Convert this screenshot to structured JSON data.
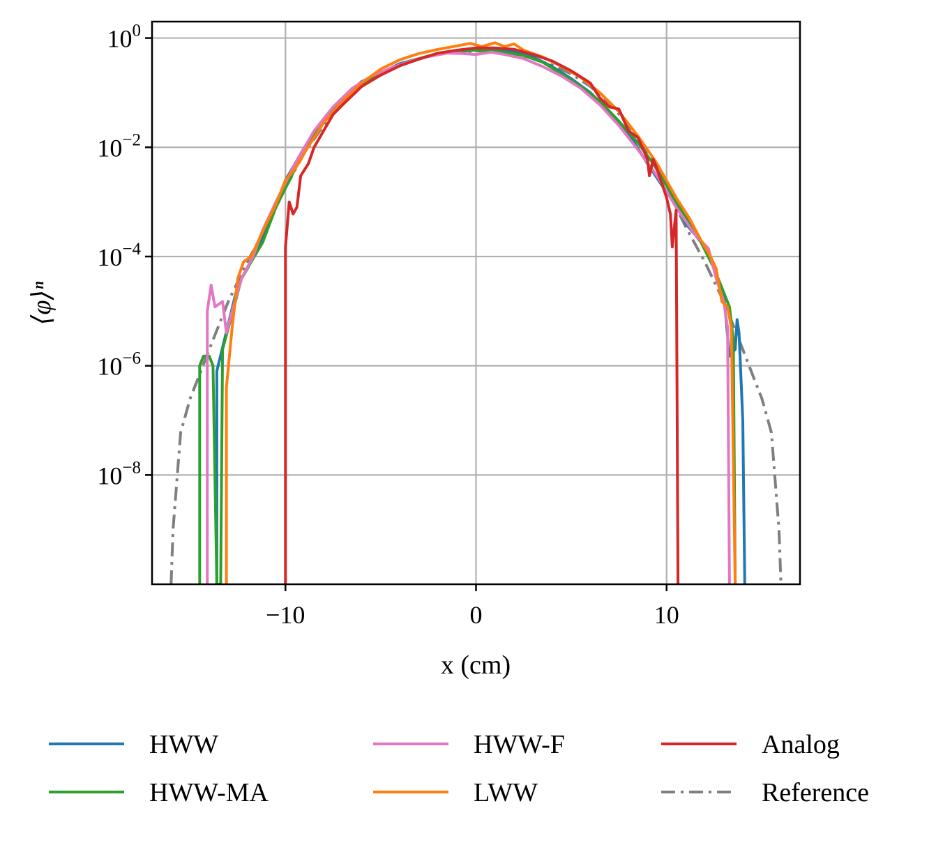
{
  "chart_data": {
    "type": "line",
    "title": "",
    "xlabel": "x (cm)",
    "ylabel": "⟨φ⟩ⁿ",
    "yscale": "log",
    "xlim": [
      -17,
      17
    ],
    "ylim": [
      1e-10,
      2
    ],
    "grid": true,
    "legend_position": "bottom",
    "x_ticks": [
      {
        "value": -10,
        "label": "−10"
      },
      {
        "value": 0,
        "label": "0"
      },
      {
        "value": 10,
        "label": "10"
      }
    ],
    "y_ticks": [
      {
        "value": 1,
        "base": "10",
        "exp": "0"
      },
      {
        "value": 0.01,
        "base": "10",
        "exp": "−2"
      },
      {
        "value": 0.0001,
        "base": "10",
        "exp": "−4"
      },
      {
        "value": 1e-06,
        "base": "10",
        "exp": "−6"
      },
      {
        "value": 1e-08,
        "base": "10",
        "exp": "−8"
      }
    ],
    "series": [
      {
        "name": "HWW",
        "color": "#1f77b4",
        "style": "solid",
        "points": [
          [
            -13.6,
            1e-10
          ],
          [
            -13.6,
            8e-07
          ],
          [
            -13.2,
            3e-06
          ],
          [
            -12.5,
            3e-05
          ],
          [
            -12,
            6e-05
          ],
          [
            -11.5,
            0.00013
          ],
          [
            -11,
            0.0003
          ],
          [
            -10,
            0.0025
          ],
          [
            -9,
            0.01
          ],
          [
            -8,
            0.032
          ],
          [
            -7,
            0.08
          ],
          [
            -6,
            0.16
          ],
          [
            -5,
            0.23
          ],
          [
            -4,
            0.34
          ],
          [
            -3,
            0.42
          ],
          [
            -2,
            0.52
          ],
          [
            -1,
            0.57
          ],
          [
            0,
            0.6
          ],
          [
            1,
            0.6
          ],
          [
            2,
            0.56
          ],
          [
            3,
            0.45
          ],
          [
            4,
            0.3
          ],
          [
            5,
            0.18
          ],
          [
            6,
            0.1
          ],
          [
            7,
            0.045
          ],
          [
            8,
            0.018
          ],
          [
            9,
            0.005
          ],
          [
            10,
            0.0015
          ],
          [
            10.5,
            0.001
          ],
          [
            11,
            0.0004
          ],
          [
            11.5,
            0.00025
          ],
          [
            12,
            0.00015
          ],
          [
            12.5,
            6e-05
          ],
          [
            13,
            2e-05
          ],
          [
            13.3,
            1.5e-06
          ],
          [
            13.6,
            2e-06
          ],
          [
            13.7,
            7e-06
          ],
          [
            13.8,
            4e-06
          ],
          [
            14,
            1e-07
          ],
          [
            14.1,
            1e-10
          ]
        ]
      },
      {
        "name": "HWW-MA",
        "color": "#2ca02c",
        "style": "solid",
        "points": [
          [
            -14.5,
            1e-10
          ],
          [
            -14.5,
            1e-06
          ],
          [
            -14.3,
            1.5e-06
          ],
          [
            -14,
            1.5e-06
          ],
          [
            -13.8,
            1e-06
          ],
          [
            -13.6,
            1e-10
          ],
          [
            -13.4,
            1e-10
          ],
          [
            -13.3,
            2e-06
          ],
          [
            -12.7,
            1.2e-05
          ],
          [
            -12.3,
            4e-05
          ],
          [
            -11.8,
            8e-05
          ],
          [
            -11.2,
            0.00018
          ],
          [
            -10.5,
            0.0008
          ],
          [
            -9.5,
            0.004
          ],
          [
            -8.5,
            0.018
          ],
          [
            -7.5,
            0.05
          ],
          [
            -6.5,
            0.11
          ],
          [
            -5.5,
            0.19
          ],
          [
            -4.5,
            0.27
          ],
          [
            -3.5,
            0.37
          ],
          [
            -2.5,
            0.47
          ],
          [
            -1.5,
            0.55
          ],
          [
            -0.5,
            0.6
          ],
          [
            0.5,
            0.6
          ],
          [
            1.5,
            0.55
          ],
          [
            2.5,
            0.48
          ],
          [
            3.5,
            0.36
          ],
          [
            4.5,
            0.22
          ],
          [
            5.5,
            0.13
          ],
          [
            6.5,
            0.07
          ],
          [
            7.5,
            0.03
          ],
          [
            8.5,
            0.012
          ],
          [
            9.5,
            0.004
          ],
          [
            10.5,
            0.001
          ],
          [
            11.5,
            0.0003
          ],
          [
            12.5,
            6e-05
          ],
          [
            13.3,
            1.2e-05
          ],
          [
            13.5,
            3e-06
          ],
          [
            13.6,
            1e-10
          ]
        ]
      },
      {
        "name": "HWW-F",
        "color": "#e377c2",
        "style": "solid",
        "points": [
          [
            -14.1,
            1e-10
          ],
          [
            -14.1,
            1e-05
          ],
          [
            -13.9,
            3e-05
          ],
          [
            -13.7,
            1.2e-05
          ],
          [
            -13.3,
            1.5e-05
          ],
          [
            -13.1,
            4e-06
          ],
          [
            -12.8,
            1e-05
          ],
          [
            -12.3,
            4e-05
          ],
          [
            -11.7,
            0.0001
          ],
          [
            -11.2,
            0.0003
          ],
          [
            -10.5,
            0.001
          ],
          [
            -9.5,
            0.005
          ],
          [
            -8.5,
            0.02
          ],
          [
            -7.5,
            0.055
          ],
          [
            -6.5,
            0.12
          ],
          [
            -5.5,
            0.2
          ],
          [
            -4.5,
            0.28
          ],
          [
            -3.5,
            0.37
          ],
          [
            -2.5,
            0.46
          ],
          [
            -1.5,
            0.53
          ],
          [
            -0.7,
            0.52
          ],
          [
            0,
            0.5
          ],
          [
            0.8,
            0.55
          ],
          [
            1.5,
            0.5
          ],
          [
            2.5,
            0.42
          ],
          [
            3.5,
            0.3
          ],
          [
            4.5,
            0.2
          ],
          [
            5.5,
            0.12
          ],
          [
            6.5,
            0.06
          ],
          [
            7.5,
            0.025
          ],
          [
            8.5,
            0.009
          ],
          [
            9.5,
            0.003
          ],
          [
            10.5,
            0.0008
          ],
          [
            11.5,
            0.00025
          ],
          [
            12.2,
            0.00014
          ],
          [
            12.6,
            4e-05
          ],
          [
            13,
            1.5e-05
          ],
          [
            13.2,
            5e-06
          ],
          [
            13.3,
            1e-10
          ]
        ]
      },
      {
        "name": "LWW",
        "color": "#ff7f0e",
        "style": "solid",
        "points": [
          [
            -13.1,
            1e-10
          ],
          [
            -13.1,
            4e-07
          ],
          [
            -12.8,
            5e-06
          ],
          [
            -12.5,
            4e-05
          ],
          [
            -12.2,
            8e-05
          ],
          [
            -11.8,
            0.0001
          ],
          [
            -11.4,
            0.0002
          ],
          [
            -11,
            0.0004
          ],
          [
            -10.5,
            0.0009
          ],
          [
            -10,
            0.0025
          ],
          [
            -9.5,
            0.004
          ],
          [
            -9,
            0.008
          ],
          [
            -8,
            0.028
          ],
          [
            -7,
            0.07
          ],
          [
            -6,
            0.15
          ],
          [
            -5,
            0.27
          ],
          [
            -4,
            0.4
          ],
          [
            -3,
            0.52
          ],
          [
            -2,
            0.62
          ],
          [
            -1,
            0.72
          ],
          [
            -0.3,
            0.8
          ],
          [
            0.3,
            0.7
          ],
          [
            1,
            0.82
          ],
          [
            1.5,
            0.7
          ],
          [
            2,
            0.78
          ],
          [
            2.5,
            0.6
          ],
          [
            3.5,
            0.45
          ],
          [
            4.5,
            0.3
          ],
          [
            5.5,
            0.19
          ],
          [
            6.5,
            0.1
          ],
          [
            7.5,
            0.045
          ],
          [
            8.5,
            0.016
          ],
          [
            9.5,
            0.005
          ],
          [
            10.5,
            0.0012
          ],
          [
            11.2,
            0.0005
          ],
          [
            11.8,
            0.0002
          ],
          [
            12.3,
            0.0001
          ],
          [
            12.6,
            6e-05
          ],
          [
            12.9,
            1.5e-05
          ],
          [
            13.2,
            1.2e-05
          ],
          [
            13.4,
            5e-06
          ],
          [
            13.6,
            1e-10
          ]
        ]
      },
      {
        "name": "Analog",
        "color": "#d62728",
        "style": "solid",
        "points": [
          [
            -10,
            1e-10
          ],
          [
            -10,
            0.00015
          ],
          [
            -9.8,
            0.001
          ],
          [
            -9.6,
            0.0006
          ],
          [
            -9.4,
            0.0008
          ],
          [
            -9.2,
            0.003
          ],
          [
            -8.8,
            0.005
          ],
          [
            -8.5,
            0.01
          ],
          [
            -8,
            0.02
          ],
          [
            -7.5,
            0.04
          ],
          [
            -7,
            0.06
          ],
          [
            -6,
            0.13
          ],
          [
            -5,
            0.21
          ],
          [
            -4,
            0.31
          ],
          [
            -3,
            0.41
          ],
          [
            -2,
            0.53
          ],
          [
            -1,
            0.6
          ],
          [
            0,
            0.66
          ],
          [
            1,
            0.66
          ],
          [
            2,
            0.62
          ],
          [
            3,
            0.5
          ],
          [
            4,
            0.38
          ],
          [
            5,
            0.25
          ],
          [
            6,
            0.15
          ],
          [
            6.5,
            0.08
          ],
          [
            7,
            0.055
          ],
          [
            7.5,
            0.05
          ],
          [
            8,
            0.02
          ],
          [
            8.5,
            0.015
          ],
          [
            9,
            0.006
          ],
          [
            9.1,
            0.003
          ],
          [
            9.3,
            0.006
          ],
          [
            9.5,
            0.004
          ],
          [
            10,
            0.0012
          ],
          [
            10.2,
            0.0006
          ],
          [
            10.3,
            0.00015
          ],
          [
            10.5,
            0.0007
          ],
          [
            10.6,
            1e-10
          ]
        ]
      },
      {
        "name": "Reference",
        "color": "#7f7f7f",
        "style": "dashdot",
        "points": [
          [
            -16,
            1e-10
          ],
          [
            -15.9,
            1e-09
          ],
          [
            -15.5,
            6e-08
          ],
          [
            -15,
            2.5e-07
          ],
          [
            -14.5,
            7e-07
          ],
          [
            -14,
            2e-06
          ],
          [
            -13,
            1.5e-05
          ],
          [
            -12,
            8e-05
          ],
          [
            -11,
            0.00035
          ],
          [
            -10,
            0.0018
          ],
          [
            -9,
            0.008
          ],
          [
            -8,
            0.025
          ],
          [
            -7,
            0.065
          ],
          [
            -6,
            0.13
          ],
          [
            -5,
            0.22
          ],
          [
            -4,
            0.32
          ],
          [
            -3,
            0.42
          ],
          [
            -2,
            0.5
          ],
          [
            -1,
            0.56
          ],
          [
            0,
            0.58
          ],
          [
            1,
            0.56
          ],
          [
            2,
            0.5
          ],
          [
            3,
            0.42
          ],
          [
            4,
            0.32
          ],
          [
            5,
            0.22
          ],
          [
            6,
            0.13
          ],
          [
            7,
            0.065
          ],
          [
            8,
            0.025
          ],
          [
            9,
            0.008
          ],
          [
            10,
            0.0018
          ],
          [
            11,
            0.00035
          ],
          [
            12,
            8e-05
          ],
          [
            13,
            1.5e-05
          ],
          [
            14,
            2e-06
          ],
          [
            14.5,
            7e-07
          ],
          [
            15,
            2.5e-07
          ],
          [
            15.5,
            6e-08
          ],
          [
            15.9,
            1e-09
          ],
          [
            16,
            1e-10
          ]
        ]
      }
    ]
  }
}
